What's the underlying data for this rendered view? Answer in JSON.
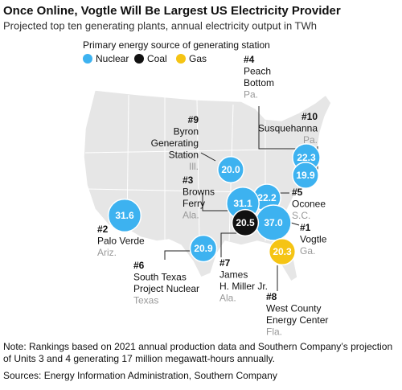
{
  "header": {
    "title": "Once Online, Vogtle Will Be Largest US Electricity Provider",
    "subtitle": "Projected top ten generating plants, annual electricity output in TWh"
  },
  "legend": {
    "title": "Primary energy source of generating station",
    "items": [
      {
        "name": "Nuclear",
        "color": "#3db2f0"
      },
      {
        "name": "Coal",
        "color": "#111111"
      },
      {
        "name": "Gas",
        "color": "#f5c414"
      }
    ]
  },
  "stations": [
    {
      "rank": "#1",
      "name": [
        "Vogtle"
      ],
      "state": "Ga.",
      "value": 37,
      "value_label": "37.0",
      "source": "Nuclear"
    },
    {
      "rank": "#2",
      "name": [
        "Palo Verde"
      ],
      "state": "Ariz.",
      "value": 31.6,
      "value_label": "31.6",
      "source": "Nuclear"
    },
    {
      "rank": "#3",
      "name": [
        "Browns",
        "Ferry"
      ],
      "state": "Ala.",
      "value": 31.1,
      "value_label": "31.1",
      "source": "Nuclear"
    },
    {
      "rank": "#4",
      "name": [
        "Peach",
        "Bottom"
      ],
      "state": "Pa.",
      "value": 22.3,
      "value_label": "22.3",
      "source": "Nuclear"
    },
    {
      "rank": "#5",
      "name": [
        "Oconee"
      ],
      "state": "S.C.",
      "value": 22.2,
      "value_label": "22.2",
      "source": "Nuclear"
    },
    {
      "rank": "#6",
      "name": [
        "South Texas",
        "Project Nuclear"
      ],
      "state": "Texas",
      "value": 20.9,
      "value_label": "20.9",
      "source": "Nuclear"
    },
    {
      "rank": "#7",
      "name": [
        "James",
        "H. Miller Jr."
      ],
      "state": "Ala.",
      "value": 20.5,
      "value_label": "20.5",
      "source": "Coal"
    },
    {
      "rank": "#8",
      "name": [
        "West County",
        "Energy Center"
      ],
      "state": "Fla.",
      "value": 20.3,
      "value_label": "20.3",
      "source": "Gas"
    },
    {
      "rank": "#9",
      "name": [
        "Byron",
        "Generating",
        "Station"
      ],
      "state": "Ill.",
      "value": 20,
      "value_label": "20.0",
      "source": "Nuclear"
    },
    {
      "rank": "#10",
      "name": [
        "Susquehanna"
      ],
      "state": "Pa.",
      "value": 19.9,
      "value_label": "19.9",
      "source": "Nuclear"
    }
  ],
  "footer": {
    "note": [
      "Note: Rankings based on 2021 annual production data and Southern Company’s projection",
      "of Units 3 and 4 generating 17 million megawatt-hours annually."
    ],
    "sources": "Sources: Energy Information Administration, Southern Company"
  }
}
